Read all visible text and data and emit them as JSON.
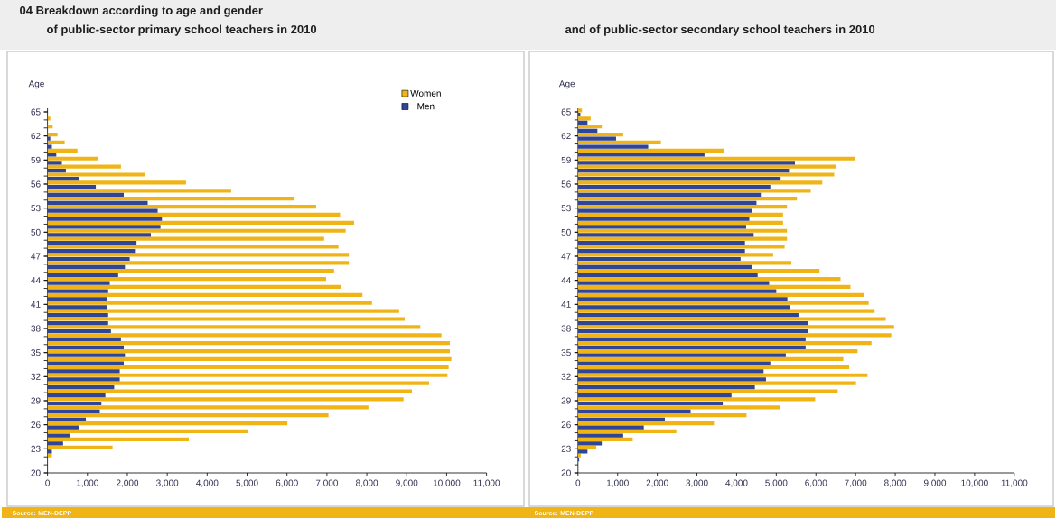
{
  "chart_data": [
    {
      "type": "bar",
      "orientation": "horizontal",
      "title": "04 Breakdown according to age and gender",
      "subtitle": "of public-sector primary school teachers in 2010",
      "ylabel": "Age",
      "categories": [
        "65",
        null,
        null,
        "62",
        null,
        null,
        "59",
        null,
        null,
        "56",
        null,
        null,
        "53",
        null,
        null,
        "50",
        null,
        null,
        "47",
        null,
        null,
        "44",
        null,
        null,
        "41",
        null,
        null,
        "38",
        null,
        null,
        "35",
        null,
        null,
        "32",
        null,
        null,
        "29",
        null,
        null,
        "26",
        null,
        null,
        "23",
        null,
        null,
        "20"
      ],
      "series": [
        {
          "name": "Women",
          "color": "#f0b416",
          "values": [
            0,
            70,
            130,
            250,
            430,
            750,
            1270,
            1840,
            2450,
            3470,
            4600,
            6190,
            6730,
            7330,
            7680,
            7470,
            6930,
            7290,
            7550,
            7550,
            7180,
            6980,
            7360,
            7890,
            8130,
            8810,
            8950,
            9340,
            9870,
            10080,
            10080,
            10120,
            10050,
            10020,
            9560,
            9130,
            8920,
            8040,
            7040,
            6010,
            5030,
            3540,
            1630,
            110,
            0,
            0
          ]
        },
        {
          "name": "Men",
          "color": "#2f4598",
          "values": [
            0,
            0,
            0,
            70,
            110,
            220,
            360,
            460,
            790,
            1210,
            1910,
            2510,
            2760,
            2870,
            2830,
            2590,
            2230,
            2190,
            2060,
            1940,
            1770,
            1560,
            1520,
            1480,
            1490,
            1520,
            1520,
            1590,
            1840,
            1910,
            1940,
            1910,
            1810,
            1810,
            1670,
            1450,
            1350,
            1310,
            960,
            780,
            570,
            390,
            110,
            0,
            0,
            0
          ]
        }
      ],
      "xlim": [
        0,
        11000
      ],
      "xticks": [
        0,
        {
          "value": 1000,
          "label": "1,000"
        },
        {
          "value": 2000,
          "label": "2,000"
        },
        {
          "value": 3000,
          "label": "3,000"
        },
        {
          "value": 4000,
          "label": "4,000"
        },
        {
          "value": 5000,
          "label": "5,000"
        },
        {
          "value": 6000,
          "label": "6,000"
        },
        {
          "value": 7000,
          "label": "7,000"
        },
        {
          "value": 8000,
          "label": "8,000"
        },
        {
          "value": 9000,
          "label": "9,000"
        },
        {
          "value": 10000,
          "label": "10,000"
        },
        {
          "value": 11000,
          "label": "11,000"
        }
      ],
      "legend": "top right",
      "annotations": [
        "Source: MEN-DEPP"
      ]
    },
    {
      "type": "bar",
      "orientation": "horizontal",
      "title": "and of public-sector secondary school teachers in 2010",
      "ylabel": "Age",
      "categories": [
        "65",
        null,
        null,
        "62",
        null,
        null,
        "59",
        null,
        null,
        "56",
        null,
        null,
        "53",
        null,
        null,
        "50",
        null,
        null,
        "47",
        null,
        null,
        "44",
        null,
        null,
        "41",
        null,
        null,
        "38",
        null,
        null,
        "35",
        null,
        null,
        "32",
        null,
        null,
        "29",
        null,
        null,
        "26",
        null,
        null,
        "23",
        null,
        null,
        "20"
      ],
      "series": [
        {
          "color": "#f0b416",
          "values": [
            100,
            320,
            600,
            1140,
            2090,
            3690,
            6980,
            6510,
            6460,
            6160,
            5870,
            5520,
            5270,
            5170,
            5170,
            5270,
            5270,
            5210,
            4920,
            5380,
            6090,
            6620,
            6870,
            7220,
            7330,
            7480,
            7760,
            7970,
            7900,
            7400,
            7050,
            6690,
            6840,
            7300,
            7010,
            6550,
            5980,
            5100,
            4250,
            3430,
            2480,
            1380,
            460,
            70,
            0,
            0
          ]
        },
        {
          "color": "#2f4598",
          "values": [
            60,
            240,
            490,
            960,
            1770,
            3190,
            5470,
            5320,
            5110,
            4850,
            4610,
            4500,
            4390,
            4320,
            4240,
            4430,
            4210,
            4210,
            4100,
            4390,
            4530,
            4820,
            5000,
            5280,
            5350,
            5560,
            5810,
            5810,
            5740,
            5740,
            5240,
            4850,
            4680,
            4740,
            4460,
            3870,
            3650,
            2840,
            2190,
            1660,
            1140,
            600,
            240,
            30,
            0,
            0
          ]
        }
      ],
      "xlim": [
        0,
        11000
      ],
      "xticks": [
        0,
        {
          "value": 1000,
          "label": "1,000"
        },
        {
          "value": 2000,
          "label": "2,000"
        },
        {
          "value": 3000,
          "label": "3,000"
        },
        {
          "value": 4000,
          "label": "4,000"
        },
        {
          "value": 5000,
          "label": "5,000"
        },
        {
          "value": 6000,
          "label": "6,000"
        },
        {
          "value": 7000,
          "label": "7,000"
        },
        {
          "value": 8000,
          "label": "8,000"
        },
        {
          "value": 9000,
          "label": "9,000"
        },
        {
          "value": 10000,
          "label": "10,000"
        },
        {
          "value": 11000,
          "label": "11,000"
        }
      ],
      "annotations": [
        "Source: MEN-DEPP"
      ]
    }
  ]
}
